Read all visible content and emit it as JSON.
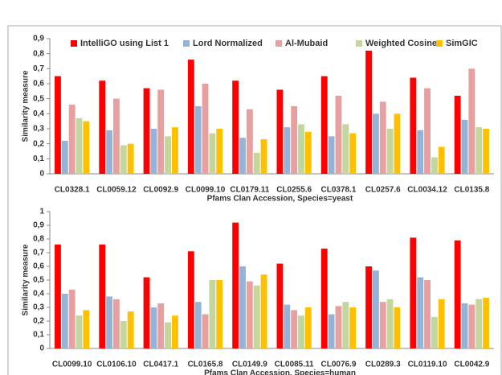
{
  "chart_data": [
    {
      "type": "bar",
      "ylabel": "Similarity measure",
      "xlabel": "Pfams Clan Accession, Species=yeast",
      "legend": "top",
      "categories": [
        "CL0328.1",
        "CL0059.12",
        "CL0092.9",
        "CL0099.10",
        "CL0179.11",
        "CL0255.6",
        "CL0378.1",
        "CL0257.6",
        "CL0034.12",
        "CL0135.8"
      ],
      "series": [
        {
          "name": "IntelliGO using List 1",
          "color": "#ff0000",
          "values": [
            0.65,
            0.62,
            0.57,
            0.76,
            0.62,
            0.56,
            0.65,
            0.82,
            0.64,
            0.52
          ]
        },
        {
          "name": "Lord Normalized",
          "color": "#95b3d7",
          "values": [
            0.22,
            0.29,
            0.3,
            0.45,
            0.24,
            0.31,
            0.25,
            0.4,
            0.29,
            0.36
          ]
        },
        {
          "name": "Al-Mubaid",
          "color": "#e6a0a0",
          "values": [
            0.46,
            0.5,
            0.56,
            0.6,
            0.43,
            0.45,
            0.52,
            0.48,
            0.57,
            0.7
          ]
        },
        {
          "name": "Weighted Cosine",
          "color": "#c3d69b",
          "values": [
            0.37,
            0.19,
            0.25,
            0.27,
            0.14,
            0.33,
            0.33,
            0.3,
            0.11,
            0.31
          ]
        },
        {
          "name": "SimGIC",
          "color": "#ffc000",
          "values": [
            0.35,
            0.2,
            0.31,
            0.3,
            0.23,
            0.28,
            0.27,
            0.4,
            0.18,
            0.3
          ]
        }
      ],
      "ylim": [
        0,
        0.9
      ],
      "yticks": [
        0,
        {
          "value": 0.1,
          "label": "0,1"
        },
        {
          "value": 0.2,
          "label": "0,2"
        },
        {
          "value": 0.3,
          "label": "0,3"
        },
        {
          "value": 0.4,
          "label": "0,4"
        },
        {
          "value": 0.5,
          "label": "0,5"
        },
        {
          "value": 0.6,
          "label": "0,6"
        },
        {
          "value": 0.7,
          "label": "0,7"
        },
        {
          "value": 0.8,
          "label": "0,8"
        },
        {
          "value": 0.9,
          "label": "0,9"
        }
      ]
    },
    {
      "type": "bar",
      "ylabel": "Similarity measure",
      "xlabel": "Pfams Clan Accession, Species=human",
      "categories": [
        "CL0099.10",
        "CL0106.10",
        "CL0417.1",
        "CL0165.8",
        "CL0149.9",
        "CL0085.11",
        "CL0076.9",
        "CL0289.3",
        "CL0119.10",
        "CL0042.9"
      ],
      "series": [
        {
          "color": "#ff0000",
          "values": [
            0.76,
            0.76,
            0.52,
            0.71,
            0.92,
            0.62,
            0.73,
            0.6,
            0.81,
            0.79
          ]
        },
        {
          "color": "#95b3d7",
          "values": [
            0.4,
            0.38,
            0.3,
            0.34,
            0.6,
            0.32,
            0.25,
            0.57,
            0.52,
            0.33
          ]
        },
        {
          "color": "#e6a0a0",
          "values": [
            0.43,
            0.36,
            0.33,
            0.25,
            0.49,
            0.28,
            0.31,
            0.34,
            0.5,
            0.32
          ]
        },
        {
          "color": "#c3d69b",
          "values": [
            0.24,
            0.2,
            0.19,
            0.5,
            0.46,
            0.24,
            0.34,
            0.36,
            0.23,
            0.36
          ]
        },
        {
          "color": "#ffc000",
          "values": [
            0.28,
            0.27,
            0.24,
            0.5,
            0.54,
            0.3,
            0.3,
            0.3,
            0.36,
            0.37
          ]
        }
      ],
      "ylim": [
        0,
        1
      ],
      "yticks": [
        0,
        {
          "value": 0.1,
          "label": "0,1"
        },
        {
          "value": 0.2,
          "label": "0,2"
        },
        {
          "value": 0.3,
          "label": "0,3"
        },
        {
          "value": 0.4,
          "label": "0,4"
        },
        {
          "value": 0.5,
          "label": "0,5"
        },
        {
          "value": 0.6,
          "label": "0,6"
        },
        {
          "value": 0.7,
          "label": "0,7"
        },
        {
          "value": 0.8,
          "label": "0,8"
        },
        {
          "value": 0.9,
          "label": "0,9"
        },
        1
      ]
    }
  ]
}
